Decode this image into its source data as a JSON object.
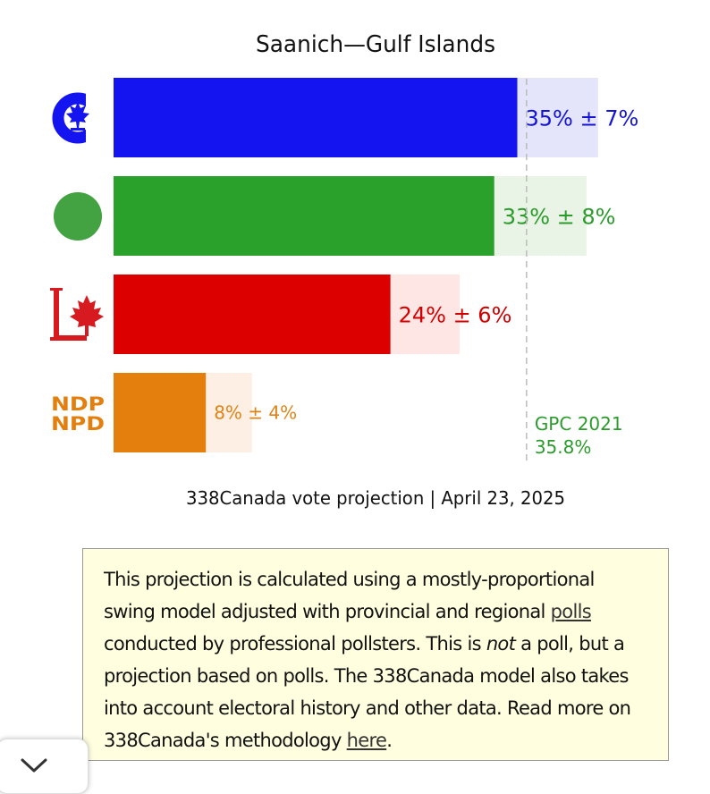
{
  "chart_data": {
    "type": "bar",
    "orientation": "horizontal",
    "title": "Saanich—Gulf Islands",
    "caption": "338Canada vote projection | April 23, 2025",
    "xlim": [
      0,
      50
    ],
    "series": [
      {
        "party": "CPC",
        "value": 35,
        "margin": 7,
        "label": "35% ± 7%",
        "icon": "cpc-logo-icon",
        "color": "#1414f0",
        "band_color": "#e4e4fb",
        "text_color": "#1414d8"
      },
      {
        "party": "GPC",
        "value": 33,
        "margin": 8,
        "label": "33% ± 8%",
        "icon": "green-party-logo-icon",
        "color": "#2aa12a",
        "band_color": "#e9f4e6",
        "text_color": "#2b9b2b"
      },
      {
        "party": "LPC",
        "value": 24,
        "margin": 6,
        "label": "24% ± 6%",
        "icon": "liberal-logo-icon",
        "color": "#dc0000",
        "band_color": "#fde6e4",
        "text_color": "#d20000"
      },
      {
        "party": "NDP",
        "value": 8,
        "margin": 4,
        "label": "8% ± 4%",
        "icon": "ndp-logo-icon",
        "color": "#e47f0d",
        "band_color": "#fdefe4",
        "text_color": "#e08316"
      }
    ],
    "reference": {
      "value": 35.8,
      "line1": "GPC 2021",
      "line2": "35.8%",
      "color": "#2b9b2b"
    },
    "logo_text": {
      "ndp_line1": "NDP",
      "ndp_line2": "NPD"
    }
  },
  "note": {
    "part1": "This projection is calculated using a mostly-proportional swing model adjusted with provincial and regional ",
    "link1": "polls",
    "part2": " conducted by professional pollsters. This is ",
    "emph": "not",
    "part3": " a poll, but a projection based on polls. The 338Canada model also takes into account electoral history and other data. Read more on 338Canada's methodology ",
    "link2": "here",
    "part4": "."
  },
  "ui": {
    "scroll_icon": "chevron-down-icon"
  }
}
